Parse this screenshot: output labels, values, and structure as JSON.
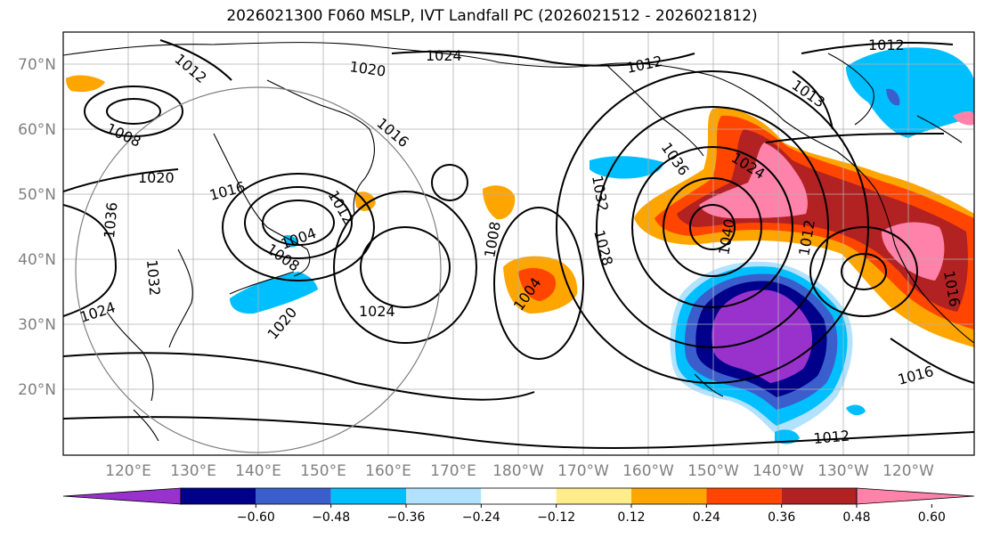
{
  "title": "2026021300 F060 MSLP, IVT Landfall PC (2026021512 - 2026021812)",
  "lat_ticks": [
    "70°N",
    "60°N",
    "50°N",
    "40°N",
    "30°N",
    "20°N"
  ],
  "lon_ticks": [
    "120°E",
    "130°E",
    "140°E",
    "150°E",
    "160°E",
    "170°E",
    "180°W",
    "170°W",
    "160°W",
    "150°W",
    "140°W",
    "130°W",
    "120°W"
  ],
  "colorbar": {
    "ticks": [
      "−0.60",
      "−0.48",
      "−0.36",
      "−0.24",
      "−0.12",
      "0.12",
      "0.24",
      "0.36",
      "0.48",
      "0.60"
    ],
    "colors": [
      "#9932cc",
      "#00008b",
      "#3a5fcd",
      "#00bfff",
      "#b2e2ff",
      "#ffffff",
      "#ffec8b",
      "#ffa500",
      "#ff4500",
      "#b22222",
      "#ff82ab"
    ]
  },
  "contour_labels": [
    "1024",
    "1020",
    "1012",
    "1012",
    "1013",
    "1012",
    "1008",
    "1016",
    "1020",
    "1016",
    "1012",
    "1004",
    "1008",
    "1036",
    "1032",
    "1024",
    "1020",
    "1024",
    "1008",
    "1004",
    "1032",
    "1028",
    "1036",
    "1024",
    "1040",
    "1012",
    "1016",
    "1012",
    "1016"
  ]
}
